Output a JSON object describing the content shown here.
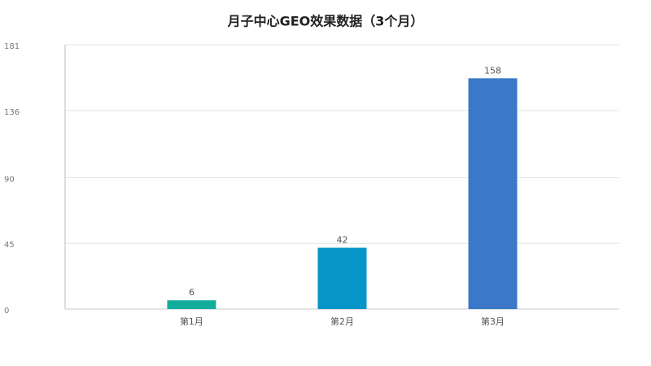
{
  "chart_data": {
    "type": "bar",
    "title": "月子中心GEO效果数据（3个月）",
    "categories": [
      "第1月",
      "第2月",
      "第3月"
    ],
    "values": [
      6,
      42,
      158
    ],
    "colors": [
      "#13ad9c",
      "#0896c8",
      "#3b78c8"
    ],
    "ylim": [
      0,
      181
    ],
    "yticks": [
      0,
      45,
      90,
      136,
      181
    ],
    "grid": true,
    "value_labels_shown": true
  }
}
